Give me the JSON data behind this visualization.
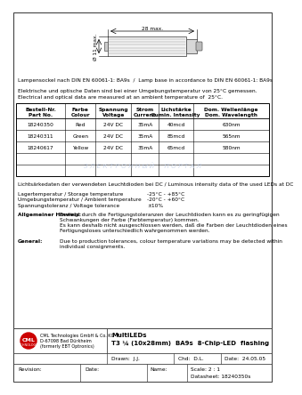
{
  "title_line1": "MultiLEDs",
  "title_line2": "T3 ¼ (10x28mm)  BA9s  8-Chip-LED  flashing",
  "lamp_base_text": "Lampensockel nach DIN EN 60061-1: BA9s  /  Lamp base in accordance to DIN EN 60061-1: BA9s",
  "electrical_text1": "Elektrische und optische Daten sind bei einer Umgebungstemperatur von 25°C gemessen.",
  "electrical_text2": "Electrical and optical data are measured at an ambient temperature of  25°C.",
  "table_headers": [
    "Bestell-Nr.\nPart No.",
    "Farbe\nColour",
    "Spannung\nVoltage",
    "Strom\nCurrent",
    "Lichstärke\nLumin. Intensity",
    "Dom. Wellenlänge\nDom. Wavelength"
  ],
  "table_rows": [
    [
      "18240350",
      "Red",
      "24V DC",
      "35mA",
      "40mcd",
      "630nm"
    ],
    [
      "18240311",
      "Green",
      "24V DC",
      "35mA",
      "85mcd",
      "565nm"
    ],
    [
      "18240617",
      "Yellow",
      "24V DC",
      "35mA",
      "65mcd",
      "580nm"
    ]
  ],
  "luminous_text": "Lichtsärkedaten der verwendeten Leuchtdioden bei DC / Luminous intensity data of the used LEDs at DC",
  "storage_temp_label": "Lagertemperatur / Storage temperature",
  "storage_temp_value": "-25°C - +85°C",
  "ambient_temp_label": "Umgebungstemperatur / Ambient temperature",
  "ambient_temp_value": "-20°C - +60°C",
  "voltage_tol_label": "Spannungstoleranz / Voltage tolerance",
  "voltage_tol_value": "±10%",
  "general_hint_label": "Allgemeiner Hinweis:",
  "general_hint_text": "Bedingt durch die Fertigungstoleranzen der Leuchtdioden kann es zu geringfügigen\nSchwankungen der Farbe (Farbtemperatur) kommen.\nEs kann deshalb nicht ausgeschlossen werden, daß die Farben der Leuchtdioden eines\nFertigungsloses unterschiedlich wahrgenommen werden.",
  "general_label": "General:",
  "general_text": "Due to production tolerances, colour temperature variations may be detected within\nindividual consignments.",
  "company_name": "CML Technologies GmbH & Co. KG",
  "company_address": "D-67098 Bad Dürkheim",
  "company_formerly": "(formerly EBT Optronics)",
  "drawn_label": "Drawn:",
  "drawn_value": "J.J.",
  "chd_label": "Chd:",
  "chd_value": "D.L.",
  "date_label": "Date:",
  "date_value": "24.05.05",
  "revision_label": "Revision:",
  "date_label2": "Date:",
  "name_label": "Name:",
  "scale_label": "Scale:",
  "scale_value": "2 : 1",
  "datasheet_label": "Datasheet:",
  "datasheet_value": "18240350s",
  "dim_28": "28 max.",
  "dim_11": "Ø 11 max.",
  "watermark_text": "З Л Е К Т Р О Н Н Ы Й     П О Р Т А Л",
  "bg_color": "#ffffff",
  "text_color": "#000000",
  "watermark_color": "#c8d4e8",
  "border_color": "#555555"
}
